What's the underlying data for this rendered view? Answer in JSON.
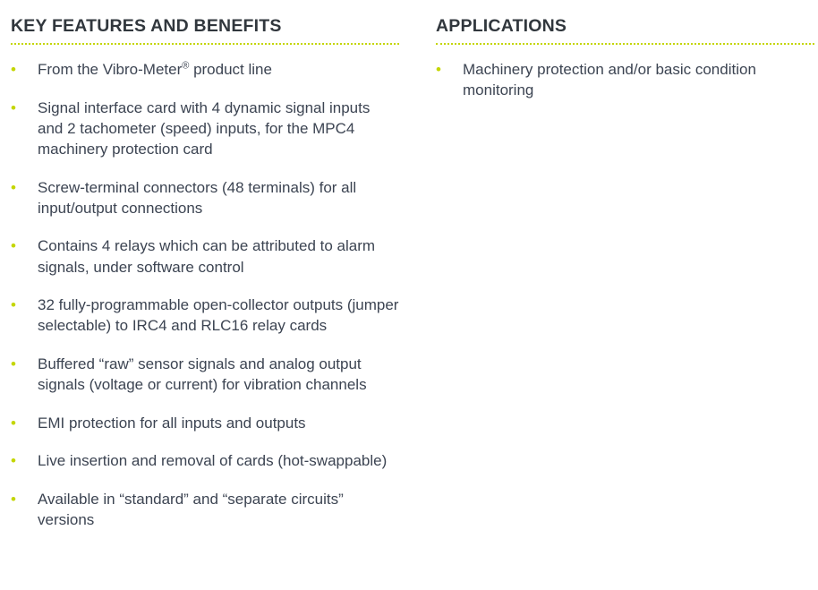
{
  "features": {
    "title": "KEY FEATURES AND BENEFITS",
    "items": [
      {
        "text": "From the Vibro-Meter",
        "sup": "®",
        "after": " product line"
      },
      {
        "text": "Signal interface card with 4 dynamic signal inputs and 2 tachometer (speed) inputs, for the MPC4 machinery protection card"
      },
      {
        "text": "Screw-terminal connectors (48 terminals) for all input/output connections"
      },
      {
        "text": "Contains 4 relays which can be attributed to alarm signals, under software control"
      },
      {
        "text": "32 fully-programmable open-collector outputs (jumper selectable) to IRC4 and RLC16 relay cards"
      },
      {
        "text": "Buffered “raw” sensor signals and analog output signals (voltage or current) for vibration channels"
      },
      {
        "text": "EMI protection for all inputs and outputs"
      },
      {
        "text": "Live insertion and removal of cards (hot-swappable)"
      },
      {
        "text": "Available in “standard” and “separate circuits” versions"
      }
    ]
  },
  "applications": {
    "title": "APPLICATIONS",
    "items": [
      {
        "text": "Machinery protection and/or basic condition monitoring"
      }
    ]
  },
  "colors": {
    "accent": "#c4d600",
    "heading": "#31373d",
    "text": "#3c4452"
  },
  "bullet": "•"
}
